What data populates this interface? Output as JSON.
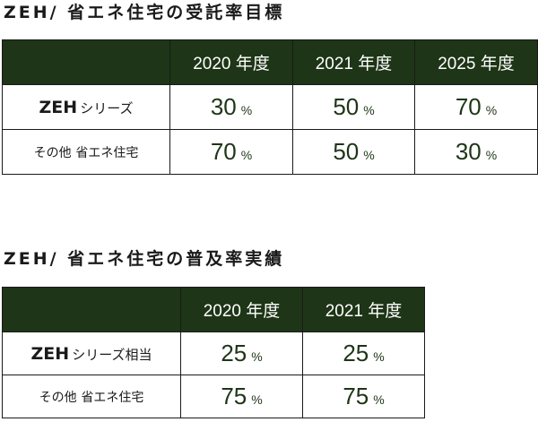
{
  "table1": {
    "title": "ZEH/ 省エネ住宅の受託率目標",
    "headers": [
      "2020 年度",
      "2021 年度",
      "2025 年度"
    ],
    "rows": [
      {
        "label_main": "ZEH",
        "label_sub": "シリーズ",
        "values": [
          "30",
          "50",
          "70"
        ]
      },
      {
        "label_main": "その他",
        "label_sub": "省エネ住宅",
        "values": [
          "70",
          "50",
          "30"
        ]
      }
    ]
  },
  "table2": {
    "title": "ZEH/ 省エネ住宅の普及率実績",
    "headers": [
      "2020 年度",
      "2021 年度"
    ],
    "rows": [
      {
        "label_main": "ZEH",
        "label_sub": "シリーズ相当",
        "values": [
          "25",
          "25"
        ]
      },
      {
        "label_main": "その他",
        "label_sub": "省エネ住宅",
        "values": [
          "75",
          "75"
        ]
      }
    ]
  },
  "unit": "%",
  "colors": {
    "header_bg": "#1e3517",
    "header_text": "#ffffff",
    "value_text": "#1e3517",
    "border": "#1a1a1a"
  }
}
